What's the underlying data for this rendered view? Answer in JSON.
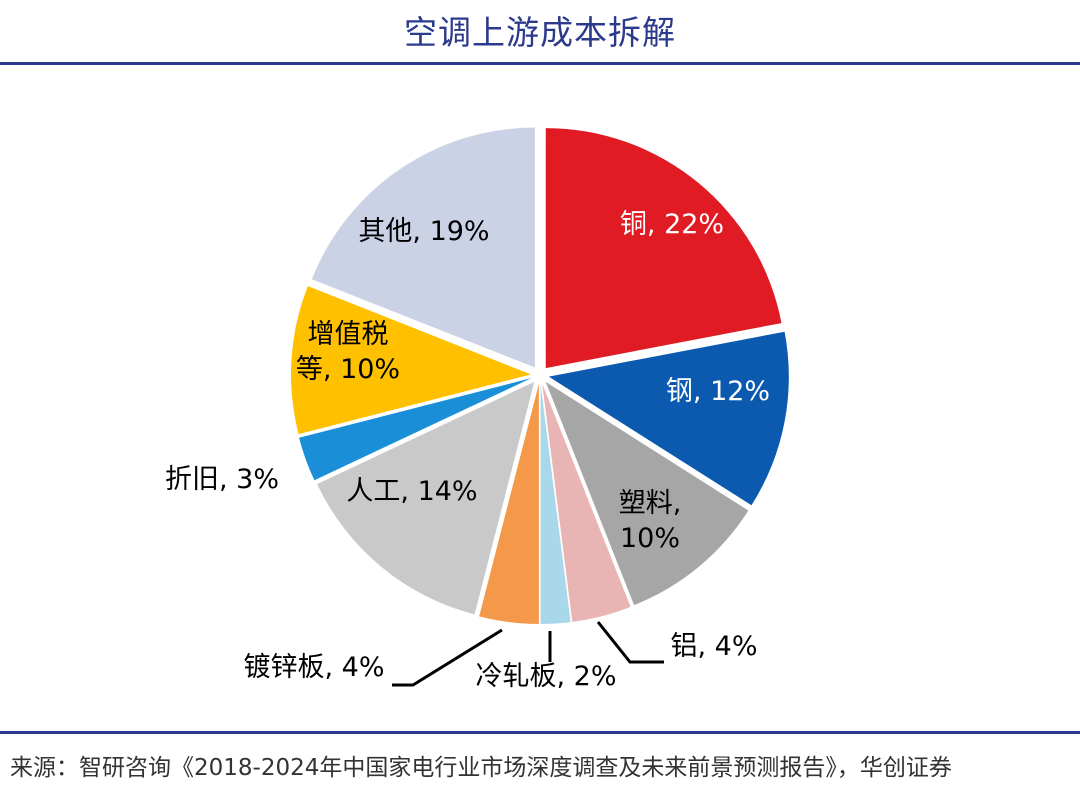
{
  "title": "空调上游成本拆解",
  "source": "来源：智研咨询《2018-2024年中国家电行业市场深度调查及未来前景预测报告》，华创证券",
  "chart_data": {
    "type": "pie",
    "title": "空调上游成本拆解",
    "start_angle_deg": 0,
    "direction": "clockwise",
    "slices": [
      {
        "name": "铜",
        "value": 22,
        "label": "铜, 22%",
        "color": "#e01b23",
        "text_color": "#ffffff"
      },
      {
        "name": "钢",
        "value": 12,
        "label": "钢, 12%",
        "color": "#0b5ab0",
        "text_color": "#ffffff"
      },
      {
        "name": "塑料",
        "value": 10,
        "label": "塑料, 10%",
        "color": "#a6a6a6",
        "text_color": "#000000"
      },
      {
        "name": "铝",
        "value": 4,
        "label": "铝, 4%",
        "color": "#e9b4b4",
        "text_color": "#000000"
      },
      {
        "name": "冷轧板",
        "value": 2,
        "label": "冷轧板, 2%",
        "color": "#a9d8ea",
        "text_color": "#000000"
      },
      {
        "name": "镀锌板",
        "value": 4,
        "label": "镀锌板, 4%",
        "color": "#f4994a",
        "text_color": "#000000"
      },
      {
        "name": "人工",
        "value": 14,
        "label": "人工, 14%",
        "color": "#c9c9c9",
        "text_color": "#000000"
      },
      {
        "name": "折旧",
        "value": 3,
        "label": "折旧, 3%",
        "color": "#1a8fd8",
        "text_color": "#000000"
      },
      {
        "name": "增值税等",
        "value": 10,
        "label": "增值税等, 10%",
        "color": "#ffc000",
        "text_color": "#000000"
      },
      {
        "name": "其他",
        "value": 19,
        "label": "其他, 19%",
        "color": "#ccd2e6",
        "text_color": "#000000"
      }
    ]
  }
}
